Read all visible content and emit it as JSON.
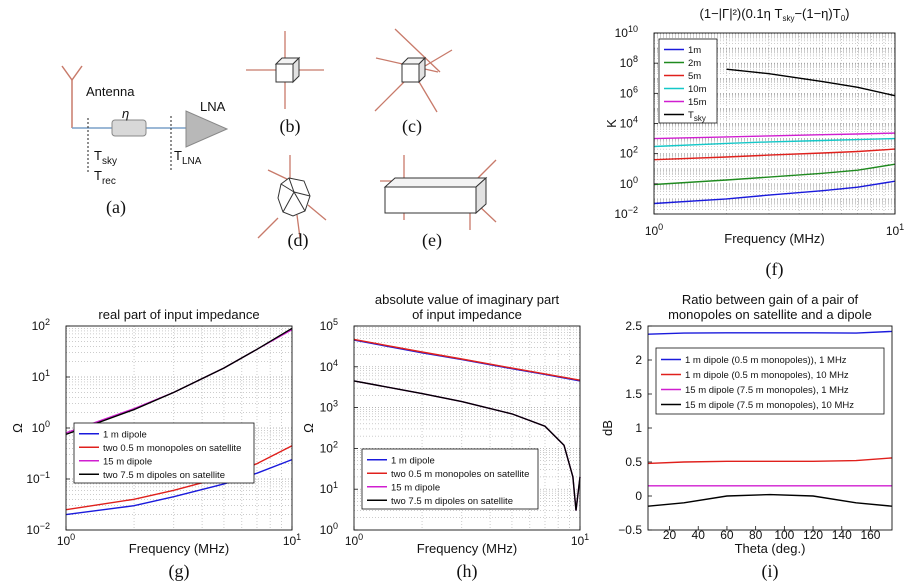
{
  "sketches": {
    "antenna_label": "Antenna",
    "eta_label": "η",
    "lna_label": "LNA",
    "t_sky": "T",
    "t_sky_sub": "sky",
    "t_rec": "T",
    "t_rec_sub": "rec",
    "t_lna": "T",
    "t_lna_sub": "LNA",
    "captions": {
      "a": "(a)",
      "b": "(b)",
      "c": "(c)",
      "d": "(d)",
      "e": "(e)"
    }
  },
  "chart_data": [
    {
      "id": "f",
      "caption": "(f)",
      "type": "line",
      "title": "(1−|Γ|²)(0.1η T_sky−(1−η)T_0)",
      "xlabel": "Frequency (MHz)",
      "ylabel": "K",
      "xscale": "log",
      "yscale": "log",
      "xlim": [
        1,
        10
      ],
      "ylim": [
        0.01,
        10000000000
      ],
      "x_ticks": [
        "10^0",
        "10^1"
      ],
      "y_ticks": [
        "10^-2",
        "10^0",
        "10^2",
        "10^4",
        "10^6",
        "10^8",
        "10^10"
      ],
      "grid": true,
      "legend_position": "top-left",
      "series": [
        {
          "name": "1m",
          "color": "#1a1adc",
          "x": [
            1,
            2,
            3,
            5,
            7,
            10
          ],
          "y": [
            0.05,
            0.1,
            0.18,
            0.35,
            0.6,
            1.5
          ]
        },
        {
          "name": "2m",
          "color": "#1f8a1f",
          "x": [
            1,
            2,
            3,
            5,
            7,
            10
          ],
          "y": [
            0.9,
            1.8,
            2.8,
            5,
            8,
            20
          ]
        },
        {
          "name": "5m",
          "color": "#e0201c",
          "x": [
            1,
            2,
            3,
            5,
            7,
            10
          ],
          "y": [
            40,
            60,
            80,
            110,
            140,
            200
          ]
        },
        {
          "name": "10m",
          "color": "#14c8c8",
          "x": [
            1,
            2,
            3,
            5,
            7,
            10
          ],
          "y": [
            300,
            480,
            600,
            750,
            850,
            1000
          ]
        },
        {
          "name": "15m",
          "color": "#d01ed0",
          "x": [
            1,
            2,
            3,
            5,
            7,
            10
          ],
          "y": [
            1000,
            1300,
            1500,
            1800,
            2000,
            2300
          ]
        },
        {
          "name": "T_sky",
          "color": "#000000",
          "x": [
            2,
            3,
            5,
            7,
            10
          ],
          "y": [
            40000000,
            20000000,
            6000000,
            2500000,
            700000
          ]
        }
      ]
    },
    {
      "id": "g",
      "caption": "(g)",
      "type": "line",
      "title": "real part of input impedance",
      "xlabel": "Frequency (MHz)",
      "ylabel": "Ω",
      "xscale": "log",
      "yscale": "log",
      "xlim": [
        1,
        10
      ],
      "ylim": [
        0.01,
        100
      ],
      "x_ticks": [
        "10^0",
        "10^1"
      ],
      "y_ticks": [
        "10^-2",
        "10^-1",
        "10^0",
        "10^1",
        "10^2"
      ],
      "grid": true,
      "legend_position": "middle-left",
      "series": [
        {
          "name": "1 m dipole",
          "color": "#1a1adc",
          "x": [
            1,
            2,
            3,
            5,
            7,
            10
          ],
          "y": [
            0.02,
            0.03,
            0.045,
            0.08,
            0.13,
            0.24
          ]
        },
        {
          "name": "two 0.5 m monopoles on satellite",
          "color": "#e0201c",
          "x": [
            1,
            2,
            3,
            5,
            7,
            10
          ],
          "y": [
            0.025,
            0.04,
            0.06,
            0.11,
            0.2,
            0.45
          ]
        },
        {
          "name": "15 m dipole",
          "color": "#d01ed0",
          "x": [
            1,
            2,
            3,
            5,
            7,
            10
          ],
          "y": [
            0.8,
            2.4,
            5,
            15,
            35,
            85
          ]
        },
        {
          "name": "two 7.5 m dipoles on satellite",
          "color": "#000000",
          "x": [
            1,
            2,
            3,
            5,
            7,
            10
          ],
          "y": [
            0.75,
            2.3,
            5,
            15,
            35,
            90
          ]
        }
      ]
    },
    {
      "id": "h",
      "caption": "(h)",
      "type": "line",
      "title": "absolute value of imaginary part\nof input impedance",
      "xlabel": "Frequency (MHz)",
      "ylabel": "Ω",
      "xscale": "log",
      "yscale": "log",
      "xlim": [
        1,
        10
      ],
      "ylim": [
        1,
        100000
      ],
      "x_ticks": [
        "10^0",
        "10^1"
      ],
      "y_ticks": [
        "10^0",
        "10^1",
        "10^2",
        "10^3",
        "10^4",
        "10^5"
      ],
      "grid": true,
      "legend_position": "bottom-left",
      "series": [
        {
          "name": "1 m dipole",
          "color": "#1a1adc",
          "x": [
            1,
            2,
            3,
            5,
            7,
            10
          ],
          "y": [
            45000,
            22000,
            15000,
            9000,
            6500,
            4500
          ]
        },
        {
          "name": "two 0.5 m monopoles on satellite",
          "color": "#e0201c",
          "x": [
            1,
            2,
            3,
            5,
            7,
            10
          ],
          "y": [
            47000,
            23000,
            15500,
            9300,
            6700,
            4700
          ]
        },
        {
          "name": "15 m dipole",
          "color": "#d01ed0",
          "x": [
            1,
            2,
            3,
            5,
            7,
            8.5,
            9.3,
            9.6,
            10
          ],
          "y": [
            4500,
            2200,
            1400,
            700,
            350,
            120,
            20,
            3,
            20
          ]
        },
        {
          "name": "two 7.5 m dipoles on satellite",
          "color": "#000000",
          "x": [
            1,
            2,
            3,
            5,
            7,
            8.5,
            9.3,
            9.6,
            10
          ],
          "y": [
            4500,
            2200,
            1400,
            700,
            350,
            120,
            20,
            3,
            20
          ]
        }
      ]
    },
    {
      "id": "i",
      "caption": "(i)",
      "type": "line",
      "title": "Ratio between gain of a pair of\nmonopoles on satellite and a dipole",
      "xlabel": "Theta (deg.)",
      "ylabel": "dB",
      "xscale": "linear",
      "yscale": "linear",
      "xlim": [
        5,
        175
      ],
      "ylim": [
        -0.5,
        2.5
      ],
      "x_ticks": [
        "20",
        "40",
        "60",
        "80",
        "100",
        "120",
        "140",
        "160"
      ],
      "y_ticks": [
        "−0.5",
        "0",
        "0.5",
        "1",
        "1.5",
        "2",
        "2.5"
      ],
      "grid": false,
      "legend_position": "top",
      "series": [
        {
          "name": "1 m dipole (0.5 m monopoles)), 1 MHz",
          "color": "#1a1adc",
          "x": [
            5,
            30,
            60,
            90,
            120,
            150,
            175
          ],
          "y": [
            2.38,
            2.395,
            2.4,
            2.4,
            2.4,
            2.395,
            2.42
          ]
        },
        {
          "name": "1 m dipole (0.5 m monopoles), 10 MHz",
          "color": "#e0201c",
          "x": [
            5,
            30,
            60,
            90,
            120,
            150,
            175
          ],
          "y": [
            0.48,
            0.5,
            0.51,
            0.51,
            0.51,
            0.52,
            0.56
          ]
        },
        {
          "name": "15 m dipole (7.5 m monopoles), 1 MHz",
          "color": "#d01ed0",
          "x": [
            5,
            175
          ],
          "y": [
            0.15,
            0.15
          ]
        },
        {
          "name": "15 m dipole (7.5 m monopoles), 10 MHz",
          "color": "#000000",
          "x": [
            5,
            30,
            60,
            90,
            120,
            150,
            175
          ],
          "y": [
            -0.15,
            -0.1,
            0.0,
            0.02,
            0.0,
            -0.1,
            -0.15
          ]
        }
      ]
    }
  ]
}
